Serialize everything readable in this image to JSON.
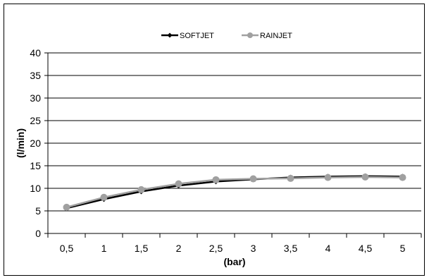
{
  "chart_data": {
    "type": "line",
    "title": "",
    "xlabel": "(bar)",
    "ylabel": "(l/min)",
    "categories": [
      "0,5",
      "1",
      "1,5",
      "2",
      "2,5",
      "3",
      "3,5",
      "4",
      "4,5",
      "5"
    ],
    "ylim": [
      0,
      40
    ],
    "yticks": [
      0,
      5,
      10,
      15,
      20,
      25,
      30,
      35,
      40
    ],
    "grid": true,
    "legend_position": "top",
    "series": [
      {
        "name": "SOFTJET",
        "color": "#000000",
        "marker": "diamond",
        "values": [
          5.6,
          7.6,
          9.3,
          10.6,
          11.5,
          12.0,
          12.4,
          12.6,
          12.7,
          12.6
        ]
      },
      {
        "name": "RAINJET",
        "color": "#a0a0a0",
        "marker": "circle",
        "values": [
          5.8,
          8.0,
          9.7,
          11.0,
          11.9,
          12.1,
          12.2,
          12.4,
          12.5,
          12.4
        ]
      }
    ]
  }
}
